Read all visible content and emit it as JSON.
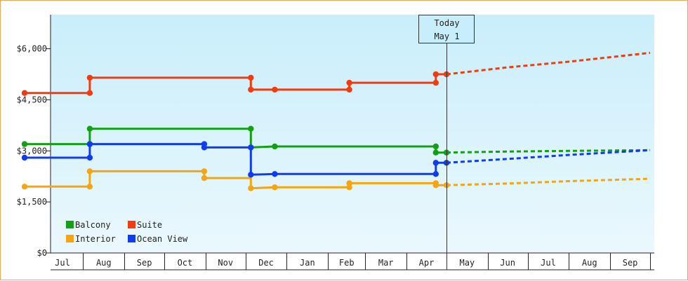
{
  "chart_data": {
    "type": "line",
    "title": "",
    "xlabel": "",
    "ylabel": "",
    "ylim": [
      0,
      7000
    ],
    "x_axis": {
      "start": "2024-06-18",
      "end": "2025-10-01",
      "tick_labels": [
        {
          "label": "Jul",
          "start": "2024-07-01",
          "end": "2024-08-01"
        },
        {
          "label": "Aug",
          "start": "2024-08-01",
          "end": "2024-09-01"
        },
        {
          "label": "Sep",
          "start": "2024-09-01",
          "end": "2024-10-01"
        },
        {
          "label": "Oct",
          "start": "2024-10-01",
          "end": "2024-11-01"
        },
        {
          "label": "Nov",
          "start": "2024-11-01",
          "end": "2024-12-01"
        },
        {
          "label": "Dec",
          "start": "2024-12-01",
          "end": "2025-01-01"
        },
        {
          "label": "Jan",
          "start": "2025-01-01",
          "end": "2025-02-01"
        },
        {
          "label": "Feb",
          "start": "2025-02-01",
          "end": "2025-03-01"
        },
        {
          "label": "Mar",
          "start": "2025-03-01",
          "end": "2025-04-01"
        },
        {
          "label": "Apr",
          "start": "2025-04-01",
          "end": "2025-05-01"
        },
        {
          "label": "May",
          "start": "2025-05-01",
          "end": "2025-06-01"
        },
        {
          "label": "Jun",
          "start": "2025-06-01",
          "end": "2025-07-01"
        },
        {
          "label": "Jul",
          "start": "2025-07-01",
          "end": "2025-08-01"
        },
        {
          "label": "Aug",
          "start": "2025-08-01",
          "end": "2025-09-01"
        },
        {
          "label": "Sep",
          "start": "2025-09-01",
          "end": "2025-10-01"
        }
      ]
    },
    "y_ticks": [
      {
        "value": 0,
        "label": "$0"
      },
      {
        "value": 1500,
        "label": "$1,500"
      },
      {
        "value": 3000,
        "label": "$3,000"
      },
      {
        "value": 4500,
        "label": "$4,500"
      },
      {
        "value": 6000,
        "label": "$6,000"
      }
    ],
    "grid": false,
    "background": {
      "top": "#c9eefb",
      "bottom": "#eaf8fd"
    },
    "today": {
      "date": "2025-05-01",
      "label_line1": "Today",
      "label_line2": "May 1"
    },
    "legend": {
      "placement": "bottom-left",
      "columns": 2
    },
    "series": [
      {
        "name": "Balcony",
        "color": "#14a014",
        "history": [
          [
            "2024-06-18",
            3200
          ],
          [
            "2024-08-06",
            3200
          ],
          [
            "2024-08-06",
            3650
          ],
          [
            "2024-12-05",
            3650
          ],
          [
            "2024-12-05",
            3100
          ],
          [
            "2024-12-23",
            3130
          ],
          [
            "2025-04-23",
            3130
          ],
          [
            "2025-04-23",
            2950
          ],
          [
            "2025-05-01",
            2950
          ]
        ],
        "markers": [
          [
            "2024-06-18",
            3200
          ],
          [
            "2024-08-06",
            3200
          ],
          [
            "2024-08-06",
            3650
          ],
          [
            "2024-12-05",
            3650
          ],
          [
            "2024-12-05",
            3100
          ],
          [
            "2024-12-23",
            3130
          ],
          [
            "2025-04-23",
            3130
          ],
          [
            "2025-04-23",
            2950
          ],
          [
            "2025-05-01",
            2950
          ]
        ],
        "forecast": [
          [
            "2025-05-01",
            2950
          ],
          [
            "2025-06-15",
            2980
          ],
          [
            "2025-08-01",
            3000
          ],
          [
            "2025-10-01",
            3020
          ]
        ]
      },
      {
        "name": "Suite",
        "color": "#f03c0f",
        "history": [
          [
            "2024-06-18",
            4700
          ],
          [
            "2024-08-06",
            4700
          ],
          [
            "2024-08-06",
            5150
          ],
          [
            "2024-12-05",
            5150
          ],
          [
            "2024-12-05",
            4800
          ],
          [
            "2024-12-23",
            4800
          ],
          [
            "2025-02-17",
            4800
          ],
          [
            "2025-02-17",
            5000
          ],
          [
            "2025-04-23",
            5000
          ],
          [
            "2025-04-23",
            5250
          ],
          [
            "2025-05-01",
            5250
          ]
        ],
        "markers": [
          [
            "2024-06-18",
            4700
          ],
          [
            "2024-08-06",
            4700
          ],
          [
            "2024-08-06",
            5150
          ],
          [
            "2024-12-05",
            5150
          ],
          [
            "2024-12-05",
            4800
          ],
          [
            "2024-12-23",
            4800
          ],
          [
            "2025-02-17",
            4800
          ],
          [
            "2025-02-17",
            5000
          ],
          [
            "2025-04-23",
            5000
          ],
          [
            "2025-04-23",
            5250
          ],
          [
            "2025-05-01",
            5250
          ]
        ],
        "forecast": [
          [
            "2025-05-01",
            5250
          ],
          [
            "2025-06-15",
            5450
          ],
          [
            "2025-08-01",
            5620
          ],
          [
            "2025-10-01",
            5880
          ]
        ]
      },
      {
        "name": "Interior",
        "color": "#f6a50f",
        "history": [
          [
            "2024-06-18",
            1950
          ],
          [
            "2024-08-06",
            1950
          ],
          [
            "2024-08-06",
            2400
          ],
          [
            "2024-10-31",
            2400
          ],
          [
            "2024-10-31",
            2200
          ],
          [
            "2024-12-05",
            2200
          ],
          [
            "2024-12-05",
            1900
          ],
          [
            "2024-12-23",
            1930
          ],
          [
            "2025-02-17",
            1930
          ],
          [
            "2025-02-17",
            2050
          ],
          [
            "2025-04-23",
            2050
          ],
          [
            "2025-04-23",
            1990
          ],
          [
            "2025-05-01",
            1990
          ]
        ],
        "markers": [
          [
            "2024-06-18",
            1950
          ],
          [
            "2024-08-06",
            1950
          ],
          [
            "2024-08-06",
            2400
          ],
          [
            "2024-10-31",
            2400
          ],
          [
            "2024-10-31",
            2200
          ],
          [
            "2024-12-05",
            1900
          ],
          [
            "2024-12-23",
            1930
          ],
          [
            "2025-02-17",
            1930
          ],
          [
            "2025-02-17",
            2050
          ],
          [
            "2025-04-23",
            2050
          ],
          [
            "2025-04-23",
            1990
          ],
          [
            "2025-05-01",
            1990
          ]
        ],
        "forecast": [
          [
            "2025-05-01",
            1990
          ],
          [
            "2025-06-15",
            2040
          ],
          [
            "2025-08-01",
            2110
          ],
          [
            "2025-10-01",
            2180
          ]
        ]
      },
      {
        "name": "Ocean View",
        "color": "#0f3cf0",
        "history": [
          [
            "2024-06-18",
            2800
          ],
          [
            "2024-08-06",
            2800
          ],
          [
            "2024-08-06",
            3200
          ],
          [
            "2024-10-31",
            3200
          ],
          [
            "2024-10-31",
            3100
          ],
          [
            "2024-12-05",
            3100
          ],
          [
            "2024-12-05",
            2300
          ],
          [
            "2024-12-23",
            2320
          ],
          [
            "2025-04-23",
            2320
          ],
          [
            "2025-04-23",
            2650
          ],
          [
            "2025-05-01",
            2650
          ]
        ],
        "markers": [
          [
            "2024-06-18",
            2800
          ],
          [
            "2024-08-06",
            2800
          ],
          [
            "2024-08-06",
            3200
          ],
          [
            "2024-10-31",
            3200
          ],
          [
            "2024-10-31",
            3100
          ],
          [
            "2024-12-05",
            3100
          ],
          [
            "2024-12-05",
            2300
          ],
          [
            "2024-12-23",
            2320
          ],
          [
            "2025-04-23",
            2320
          ],
          [
            "2025-04-23",
            2650
          ],
          [
            "2025-05-01",
            2650
          ]
        ],
        "forecast": [
          [
            "2025-05-01",
            2650
          ],
          [
            "2025-06-15",
            2760
          ],
          [
            "2025-08-01",
            2880
          ],
          [
            "2025-10-01",
            3020
          ]
        ]
      }
    ]
  }
}
